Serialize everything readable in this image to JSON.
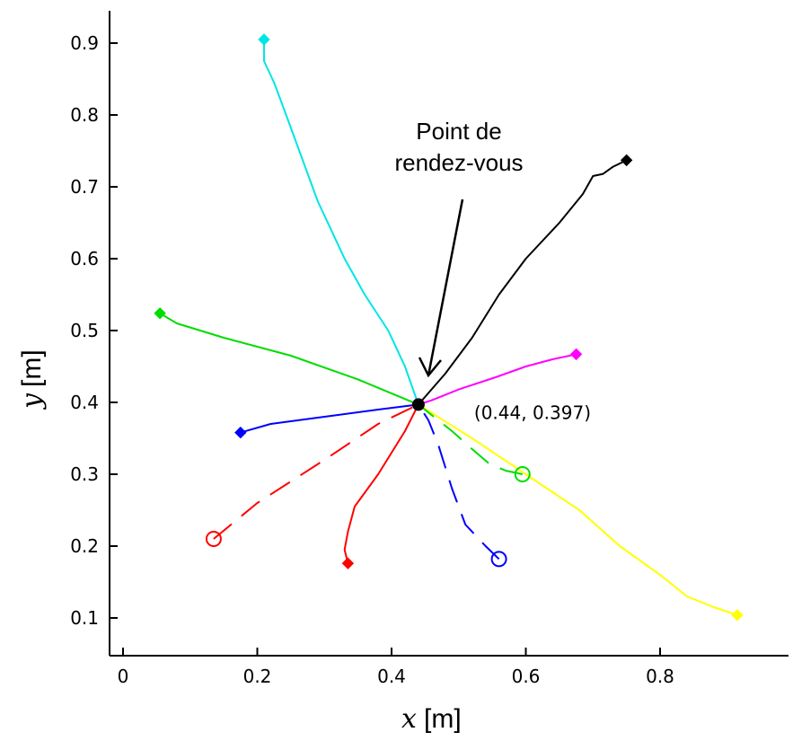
{
  "chart_data": {
    "type": "line",
    "xlabel_var": "x",
    "xlabel_unit": "[m]",
    "ylabel_var": "y",
    "ylabel_unit": "[m]",
    "xlim": [
      -0.02,
      1.02
    ],
    "ylim": [
      0.03,
      0.95
    ],
    "xticks": [
      0,
      0.2,
      0.4,
      0.6,
      0.8
    ],
    "xtick_labels": [
      "0",
      "0.2",
      "0.4",
      "0.6",
      "0.8"
    ],
    "yticks": [
      0.1,
      0.2,
      0.3,
      0.4,
      0.5,
      0.6,
      0.7,
      0.8,
      0.9
    ],
    "ytick_labels": [
      "0.1",
      "0.2",
      "0.3",
      "0.4",
      "0.5",
      "0.6",
      "0.7",
      "0.8",
      "0.9"
    ],
    "rendezvous": {
      "x": 0.44,
      "y": 0.397,
      "label": "(0.44, 0.397)"
    },
    "annotation": {
      "lines": [
        "Point de",
        "rendez-vous"
      ],
      "arrow_from": [
        0.52,
        0.73
      ],
      "arrow_to": [
        0.445,
        0.41
      ]
    },
    "series": [
      {
        "color": "#00e5e5",
        "style": "solid",
        "start_marker": "diamond",
        "points": [
          [
            0.21,
            0.905
          ],
          [
            0.21,
            0.875
          ],
          [
            0.225,
            0.845
          ],
          [
            0.235,
            0.82
          ],
          [
            0.245,
            0.795
          ],
          [
            0.29,
            0.68
          ],
          [
            0.33,
            0.6
          ],
          [
            0.36,
            0.55
          ],
          [
            0.395,
            0.5
          ],
          [
            0.42,
            0.45
          ],
          [
            0.44,
            0.397
          ]
        ]
      },
      {
        "color": "#000000",
        "style": "solid",
        "start_marker": "diamond",
        "points": [
          [
            0.75,
            0.737
          ],
          [
            0.73,
            0.728
          ],
          [
            0.715,
            0.718
          ],
          [
            0.7,
            0.715
          ],
          [
            0.685,
            0.69
          ],
          [
            0.65,
            0.65
          ],
          [
            0.6,
            0.6
          ],
          [
            0.56,
            0.55
          ],
          [
            0.52,
            0.49
          ],
          [
            0.48,
            0.44
          ],
          [
            0.44,
            0.397
          ]
        ]
      },
      {
        "color": "#ff00ff",
        "style": "solid",
        "start_marker": "diamond",
        "points": [
          [
            0.675,
            0.467
          ],
          [
            0.64,
            0.46
          ],
          [
            0.6,
            0.45
          ],
          [
            0.555,
            0.435
          ],
          [
            0.5,
            0.418
          ],
          [
            0.46,
            0.403
          ],
          [
            0.44,
            0.397
          ]
        ]
      },
      {
        "color": "#00dd00",
        "style": "solid",
        "start_marker": "diamond",
        "points": [
          [
            0.055,
            0.524
          ],
          [
            0.08,
            0.51
          ],
          [
            0.15,
            0.49
          ],
          [
            0.25,
            0.465
          ],
          [
            0.35,
            0.432
          ],
          [
            0.44,
            0.397
          ]
        ]
      },
      {
        "color": "#0000ff",
        "style": "solid",
        "start_marker": "diamond",
        "points": [
          [
            0.175,
            0.358
          ],
          [
            0.22,
            0.37
          ],
          [
            0.3,
            0.38
          ],
          [
            0.38,
            0.39
          ],
          [
            0.44,
            0.397
          ]
        ]
      },
      {
        "color": "#ff0000",
        "style": "solid",
        "start_marker": "diamond",
        "points": [
          [
            0.335,
            0.176
          ],
          [
            0.33,
            0.195
          ],
          [
            0.335,
            0.22
          ],
          [
            0.345,
            0.255
          ],
          [
            0.38,
            0.3
          ],
          [
            0.42,
            0.36
          ],
          [
            0.44,
            0.397
          ]
        ]
      },
      {
        "color": "#ffff00",
        "style": "solid",
        "start_marker": "diamond",
        "points": [
          [
            0.915,
            0.104
          ],
          [
            0.88,
            0.115
          ],
          [
            0.84,
            0.13
          ],
          [
            0.8,
            0.16
          ],
          [
            0.74,
            0.2
          ],
          [
            0.68,
            0.25
          ],
          [
            0.6,
            0.3
          ],
          [
            0.52,
            0.35
          ],
          [
            0.44,
            0.397
          ]
        ]
      },
      {
        "color": "#ff0000",
        "style": "dashed",
        "start_marker": "circle",
        "points": [
          [
            0.135,
            0.21
          ],
          [
            0.2,
            0.26
          ],
          [
            0.3,
            0.32
          ],
          [
            0.38,
            0.37
          ],
          [
            0.44,
            0.397
          ]
        ]
      },
      {
        "color": "#0000ff",
        "style": "dashed",
        "start_marker": "circle",
        "points": [
          [
            0.56,
            0.182
          ],
          [
            0.54,
            0.2
          ],
          [
            0.51,
            0.23
          ],
          [
            0.49,
            0.28
          ],
          [
            0.47,
            0.34
          ],
          [
            0.455,
            0.375
          ],
          [
            0.44,
            0.397
          ]
        ]
      },
      {
        "color": "#00dd00",
        "style": "dashed",
        "start_marker": "circle",
        "points": [
          [
            0.595,
            0.3
          ],
          [
            0.57,
            0.305
          ],
          [
            0.545,
            0.315
          ],
          [
            0.52,
            0.335
          ],
          [
            0.49,
            0.36
          ],
          [
            0.44,
            0.397
          ]
        ]
      }
    ]
  }
}
